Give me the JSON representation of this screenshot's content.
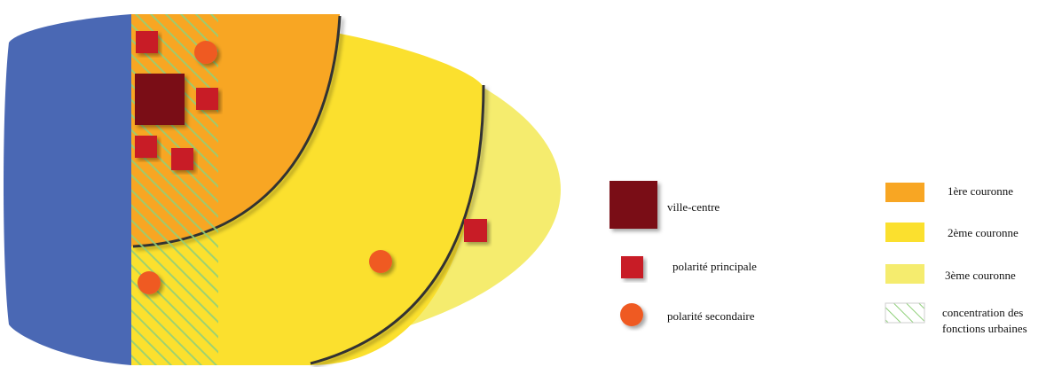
{
  "colors": {
    "sea": "#4a68b4",
    "ring1": "#f8a623",
    "ring2": "#fbe02e",
    "ring3": "#f5ec6e",
    "hatch": "#8fd07a",
    "ville_centre": "#7a1115",
    "polarite_principale": "#c81e28",
    "polarite_secondaire": "#ef5a23",
    "ring_border": "#333333"
  },
  "legend": {
    "ville_centre": "ville-centre",
    "polarite_principale": "polarité principale",
    "polarite_secondaire": "polarité secondaire",
    "couronne1": "1ère couronne",
    "couronne2": "2ème couronne",
    "couronne3": "3ème couronne",
    "concentration_line1": "concentration des",
    "concentration_line2": "fonctions urbaines"
  }
}
